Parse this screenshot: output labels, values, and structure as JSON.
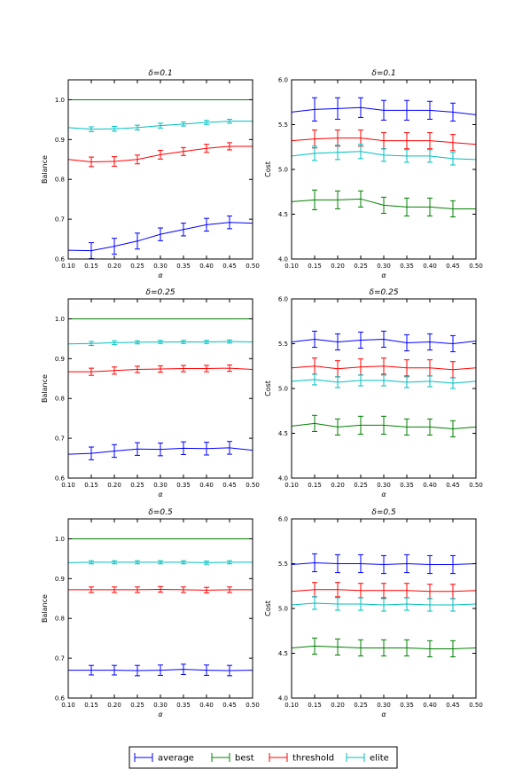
{
  "colors": {
    "average": "#0000ff",
    "best": "#008000",
    "threshold": "#ff0000",
    "elite": "#00bfbf"
  },
  "legend": {
    "placement": "bottom-center",
    "entries": [
      "average",
      "best",
      "threshold",
      "elite"
    ]
  },
  "chart_data": [
    {
      "type": "line",
      "title": "δ=0.1",
      "xlabel": "α",
      "ylabel": "Balance",
      "x": [
        0.1,
        0.15,
        0.2,
        0.25,
        0.3,
        0.35,
        0.4,
        0.45,
        0.5
      ],
      "xlim": [
        0.1,
        0.5
      ],
      "ylim": [
        0.6,
        1.05
      ],
      "xticks": [
        "0.10",
        "0.15",
        "0.20",
        "0.25",
        "0.30",
        "0.35",
        "0.40",
        "0.45",
        "0.50"
      ],
      "yticks": [
        "0.6",
        "0.7",
        "0.8",
        "0.9",
        "1.0"
      ],
      "series": [
        {
          "name": "average",
          "values": [
            0.622,
            0.621,
            0.632,
            0.645,
            0.662,
            0.674,
            0.686,
            0.692,
            0.69
          ],
          "err": [
            0,
            0.02,
            0.02,
            0.02,
            0.016,
            0.016,
            0.016,
            0.016,
            0
          ]
        },
        {
          "name": "best",
          "values": [
            1.0,
            1.0,
            1.0,
            1.0,
            1.0,
            1.0,
            1.0,
            1.0,
            1.0
          ],
          "err": [
            0,
            0,
            0,
            0,
            0,
            0,
            0,
            0,
            0
          ]
        },
        {
          "name": "threshold",
          "values": [
            0.85,
            0.844,
            0.845,
            0.85,
            0.862,
            0.87,
            0.878,
            0.883,
            0.883
          ],
          "err": [
            0,
            0.012,
            0.012,
            0.011,
            0.011,
            0.01,
            0.01,
            0.009,
            0
          ]
        },
        {
          "name": "elite",
          "values": [
            0.93,
            0.926,
            0.927,
            0.93,
            0.935,
            0.939,
            0.943,
            0.946,
            0.946
          ],
          "err": [
            0,
            0.006,
            0.006,
            0.006,
            0.006,
            0.005,
            0.005,
            0.005,
            0
          ]
        }
      ]
    },
    {
      "type": "line",
      "title": "δ=0.1",
      "xlabel": "α",
      "ylabel": "Cost",
      "x": [
        0.1,
        0.15,
        0.2,
        0.25,
        0.3,
        0.35,
        0.4,
        0.45,
        0.5
      ],
      "xlim": [
        0.1,
        0.5
      ],
      "ylim": [
        4.0,
        6.0
      ],
      "xticks": [
        "0.10",
        "0.15",
        "0.20",
        "0.25",
        "0.30",
        "0.35",
        "0.40",
        "0.45",
        "0.50"
      ],
      "yticks": [
        "4.0",
        "4.5",
        "5.0",
        "5.5",
        "6.0"
      ],
      "series": [
        {
          "name": "average",
          "values": [
            5.64,
            5.67,
            5.68,
            5.69,
            5.66,
            5.66,
            5.66,
            5.64,
            5.61
          ],
          "err": [
            0,
            0.13,
            0.12,
            0.11,
            0.11,
            0.11,
            0.1,
            0.1,
            0
          ]
        },
        {
          "name": "best",
          "values": [
            4.64,
            4.66,
            4.66,
            4.67,
            4.6,
            4.58,
            4.58,
            4.56,
            4.56
          ],
          "err": [
            0,
            0.11,
            0.1,
            0.09,
            0.09,
            0.1,
            0.1,
            0.09,
            0
          ]
        },
        {
          "name": "threshold",
          "values": [
            5.32,
            5.34,
            5.35,
            5.35,
            5.32,
            5.32,
            5.32,
            5.3,
            5.28
          ],
          "err": [
            0,
            0.1,
            0.09,
            0.09,
            0.09,
            0.09,
            0.09,
            0.09,
            0
          ]
        },
        {
          "name": "elite",
          "values": [
            5.15,
            5.18,
            5.19,
            5.2,
            5.16,
            5.15,
            5.15,
            5.12,
            5.11
          ],
          "err": [
            0,
            0.08,
            0.08,
            0.08,
            0.07,
            0.07,
            0.07,
            0.07,
            0
          ]
        }
      ]
    },
    {
      "type": "line",
      "title": "δ=0.25",
      "xlabel": "α",
      "ylabel": "Balance",
      "x": [
        0.1,
        0.15,
        0.2,
        0.25,
        0.3,
        0.35,
        0.4,
        0.45,
        0.5
      ],
      "xlim": [
        0.1,
        0.5
      ],
      "ylim": [
        0.6,
        1.05
      ],
      "xticks": [
        "0.10",
        "0.15",
        "0.20",
        "0.25",
        "0.30",
        "0.35",
        "0.40",
        "0.45",
        "0.50"
      ],
      "yticks": [
        "0.6",
        "0.7",
        "0.8",
        "0.9",
        "1.0"
      ],
      "series": [
        {
          "name": "average",
          "values": [
            0.66,
            0.662,
            0.668,
            0.673,
            0.672,
            0.675,
            0.674,
            0.676,
            0.67
          ],
          "err": [
            0,
            0.016,
            0.016,
            0.016,
            0.016,
            0.016,
            0.016,
            0.016,
            0
          ]
        },
        {
          "name": "best",
          "values": [
            1.0,
            1.0,
            1.0,
            1.0,
            1.0,
            1.0,
            1.0,
            1.0,
            1.0
          ],
          "err": [
            0,
            0,
            0,
            0,
            0,
            0,
            0,
            0,
            0
          ]
        },
        {
          "name": "threshold",
          "values": [
            0.867,
            0.867,
            0.87,
            0.873,
            0.874,
            0.875,
            0.875,
            0.876,
            0.873
          ],
          "err": [
            0,
            0.009,
            0.009,
            0.008,
            0.008,
            0.008,
            0.008,
            0.008,
            0
          ]
        },
        {
          "name": "elite",
          "values": [
            0.937,
            0.938,
            0.94,
            0.941,
            0.942,
            0.942,
            0.942,
            0.943,
            0.942
          ],
          "err": [
            0,
            0.005,
            0.005,
            0.004,
            0.004,
            0.004,
            0.004,
            0.004,
            0
          ]
        }
      ]
    },
    {
      "type": "line",
      "title": "δ=0.25",
      "xlabel": "α",
      "ylabel": "Cost",
      "x": [
        0.1,
        0.15,
        0.2,
        0.25,
        0.3,
        0.35,
        0.4,
        0.45,
        0.5
      ],
      "xlim": [
        0.1,
        0.5
      ],
      "ylim": [
        4.0,
        6.0
      ],
      "xticks": [
        "0.10",
        "0.15",
        "0.20",
        "0.25",
        "0.30",
        "0.35",
        "0.40",
        "0.45",
        "0.50"
      ],
      "yticks": [
        "4.0",
        "4.5",
        "5.0",
        "5.5",
        "6.0"
      ],
      "series": [
        {
          "name": "average",
          "values": [
            5.52,
            5.55,
            5.52,
            5.54,
            5.55,
            5.51,
            5.52,
            5.5,
            5.53
          ],
          "err": [
            0,
            0.09,
            0.09,
            0.09,
            0.09,
            0.09,
            0.09,
            0.09,
            0
          ]
        },
        {
          "name": "best",
          "values": [
            4.58,
            4.61,
            4.57,
            4.59,
            4.59,
            4.57,
            4.57,
            4.55,
            4.57
          ],
          "err": [
            0,
            0.09,
            0.09,
            0.1,
            0.1,
            0.09,
            0.09,
            0.09,
            0
          ]
        },
        {
          "name": "threshold",
          "values": [
            5.23,
            5.25,
            5.22,
            5.24,
            5.25,
            5.23,
            5.23,
            5.21,
            5.23
          ],
          "err": [
            0,
            0.09,
            0.09,
            0.09,
            0.09,
            0.09,
            0.09,
            0.09,
            0
          ]
        },
        {
          "name": "elite",
          "values": [
            5.08,
            5.1,
            5.07,
            5.09,
            5.09,
            5.07,
            5.08,
            5.06,
            5.08
          ],
          "err": [
            0,
            0.06,
            0.06,
            0.06,
            0.06,
            0.06,
            0.06,
            0.06,
            0
          ]
        }
      ]
    },
    {
      "type": "line",
      "title": "δ=0.5",
      "xlabel": "α",
      "ylabel": "Balance",
      "x": [
        0.1,
        0.15,
        0.2,
        0.25,
        0.3,
        0.35,
        0.4,
        0.45,
        0.5
      ],
      "xlim": [
        0.1,
        0.5
      ],
      "ylim": [
        0.6,
        1.05
      ],
      "xticks": [
        "0.10",
        "0.15",
        "0.20",
        "0.25",
        "0.30",
        "0.35",
        "0.40",
        "0.45",
        "0.50"
      ],
      "yticks": [
        "0.6",
        "0.7",
        "0.8",
        "0.9",
        "1.0"
      ],
      "series": [
        {
          "name": "average",
          "values": [
            0.67,
            0.67,
            0.67,
            0.669,
            0.67,
            0.672,
            0.67,
            0.669,
            0.67
          ],
          "err": [
            0,
            0.012,
            0.012,
            0.013,
            0.013,
            0.013,
            0.013,
            0.013,
            0
          ]
        },
        {
          "name": "best",
          "values": [
            1.0,
            1.0,
            1.0,
            1.0,
            1.0,
            1.0,
            1.0,
            1.0,
            1.0
          ],
          "err": [
            0,
            0,
            0,
            0,
            0,
            0,
            0,
            0,
            0
          ]
        },
        {
          "name": "threshold",
          "values": [
            0.872,
            0.872,
            0.872,
            0.872,
            0.873,
            0.872,
            0.871,
            0.872,
            0.872
          ],
          "err": [
            0,
            0.007,
            0.007,
            0.007,
            0.007,
            0.007,
            0.007,
            0.007,
            0
          ]
        },
        {
          "name": "elite",
          "values": [
            0.94,
            0.941,
            0.941,
            0.941,
            0.941,
            0.941,
            0.94,
            0.941,
            0.941
          ],
          "err": [
            0,
            0.004,
            0.004,
            0.004,
            0.004,
            0.004,
            0.004,
            0.004,
            0
          ]
        }
      ]
    },
    {
      "type": "line",
      "title": "δ=0.5",
      "xlabel": "α",
      "ylabel": "Cost",
      "x": [
        0.1,
        0.15,
        0.2,
        0.25,
        0.3,
        0.35,
        0.4,
        0.45,
        0.5
      ],
      "xlim": [
        0.1,
        0.5
      ],
      "ylim": [
        4.0,
        6.0
      ],
      "xticks": [
        "0.10",
        "0.15",
        "0.20",
        "0.25",
        "0.30",
        "0.35",
        "0.40",
        "0.45",
        "0.50"
      ],
      "yticks": [
        "4.0",
        "4.5",
        "5.0",
        "5.5",
        "6.0"
      ],
      "series": [
        {
          "name": "average",
          "values": [
            5.49,
            5.51,
            5.5,
            5.5,
            5.49,
            5.5,
            5.49,
            5.49,
            5.5
          ],
          "err": [
            0,
            0.1,
            0.1,
            0.1,
            0.1,
            0.1,
            0.1,
            0.1,
            0
          ]
        },
        {
          "name": "best",
          "values": [
            4.56,
            4.58,
            4.57,
            4.56,
            4.56,
            4.56,
            4.55,
            4.55,
            4.56
          ],
          "err": [
            0,
            0.09,
            0.09,
            0.09,
            0.09,
            0.09,
            0.09,
            0.09,
            0
          ]
        },
        {
          "name": "threshold",
          "values": [
            5.19,
            5.21,
            5.21,
            5.2,
            5.2,
            5.2,
            5.19,
            5.19,
            5.2
          ],
          "err": [
            0,
            0.08,
            0.08,
            0.08,
            0.08,
            0.08,
            0.08,
            0.08,
            0
          ]
        },
        {
          "name": "elite",
          "values": [
            5.04,
            5.06,
            5.05,
            5.05,
            5.04,
            5.05,
            5.04,
            5.04,
            5.05
          ],
          "err": [
            0,
            0.07,
            0.07,
            0.07,
            0.07,
            0.07,
            0.07,
            0.07,
            0
          ]
        }
      ]
    }
  ]
}
